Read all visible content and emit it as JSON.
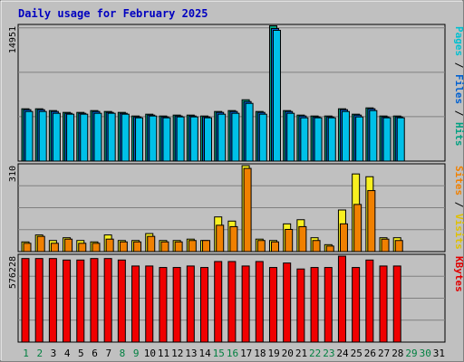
{
  "chart_data": {
    "type": "bar",
    "title": "Daily usage for February 2025",
    "categories": [
      "1",
      "2",
      "3",
      "4",
      "5",
      "6",
      "7",
      "8",
      "9",
      "10",
      "11",
      "12",
      "13",
      "14",
      "15",
      "16",
      "17",
      "18",
      "19",
      "20",
      "21",
      "22",
      "23",
      "24",
      "25",
      "26",
      "27",
      "28",
      "29",
      "30",
      "31"
    ],
    "weekend_days": [
      1,
      2,
      8,
      9,
      15,
      16,
      22,
      23,
      29,
      30
    ],
    "panels": [
      {
        "id": "pages-files-hits",
        "max_label": "14951",
        "ymax": 14951,
        "right_label_parts": [
          {
            "text": "Pages",
            "color": "#00c0d0"
          },
          {
            "text": " / ",
            "color": "#000000"
          },
          {
            "text": "Files",
            "color": "#0060d0"
          },
          {
            "text": " / ",
            "color": "#000000"
          },
          {
            "text": "Hits",
            "color": "#00a080"
          }
        ],
        "series": [
          {
            "color": "#00a080",
            "values": [
              5800,
              5800,
              5600,
              5400,
              5400,
              5600,
              5500,
              5400,
              5000,
              5200,
              5000,
              5100,
              5100,
              5000,
              5500,
              5600,
              6800,
              5500,
              15000,
              5600,
              5100,
              5000,
              5000,
              5800,
              5200,
              5900,
              5000,
              5000,
              null,
              null,
              null
            ]
          },
          {
            "color": "#0060d0",
            "values": [
              5700,
              5700,
              5500,
              5300,
              5300,
              5500,
              5400,
              5300,
              4900,
              5100,
              4900,
              5000,
              5000,
              4900,
              5400,
              5500,
              6600,
              5400,
              14700,
              5500,
              5000,
              4900,
              4900,
              5700,
              5100,
              5800,
              4900,
              4900,
              null,
              null,
              null
            ]
          },
          {
            "color": "#00c0e8",
            "values": [
              5500,
              5500,
              5300,
              5200,
              5200,
              5300,
              5300,
              5200,
              4800,
              5000,
              4800,
              4900,
              4900,
              4800,
              5200,
              5300,
              6400,
              5200,
              14500,
              5300,
              4800,
              4800,
              4800,
              5500,
              4900,
              5600,
              4800,
              4800,
              null,
              null,
              null
            ]
          }
        ]
      },
      {
        "id": "visits-sites",
        "max_label": "310",
        "ymax": 310,
        "right_label_parts": [
          {
            "text": "Sites",
            "color": "#f08000"
          },
          {
            "text": " / ",
            "color": "#000000"
          },
          {
            "text": "Visits",
            "color": "#e0c000"
          }
        ],
        "series": [
          {
            "color": "#f8f020",
            "values": [
              35,
              60,
              40,
              50,
              40,
              35,
              60,
              40,
              40,
              65,
              40,
              40,
              45,
              40,
              125,
              110,
              310,
              45,
              40,
              100,
              115,
              50,
              25,
              150,
              280,
              270,
              50,
              50,
              null,
              null,
              null
            ]
          },
          {
            "color": "#f08000",
            "values": [
              30,
              55,
              30,
              45,
              30,
              30,
              45,
              35,
              35,
              55,
              35,
              35,
              40,
              40,
              95,
              90,
              300,
              40,
              35,
              80,
              90,
              40,
              20,
              100,
              170,
              220,
              45,
              40,
              null,
              null,
              null
            ]
          }
        ]
      },
      {
        "id": "kbytes",
        "max_label": "576228",
        "ymax": 576228,
        "right_label_parts": [
          {
            "text": "KBytes",
            "color": "#e00000"
          }
        ],
        "series": [
          {
            "color": "#f00000",
            "values": [
              560000,
              560000,
              560000,
              550000,
              550000,
              560000,
              560000,
              550000,
              510000,
              510000,
              500000,
              500000,
              510000,
              500000,
              540000,
              540000,
              510000,
              540000,
              500000,
              530000,
              490000,
              500000,
              500000,
              576000,
              500000,
              550000,
              510000,
              510000,
              null,
              null,
              null
            ]
          }
        ]
      }
    ]
  }
}
